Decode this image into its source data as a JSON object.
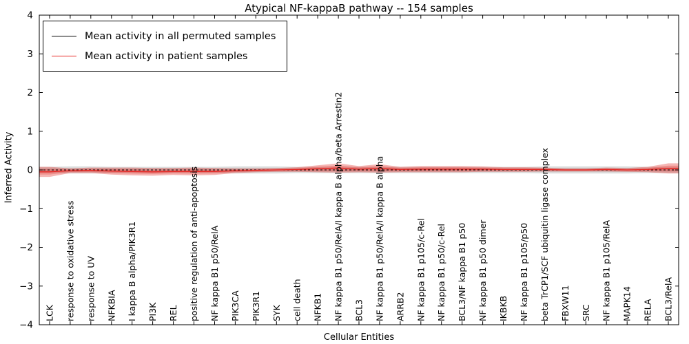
{
  "figure": {
    "title": "Atypical NF-kappaB pathway -- 154 samples",
    "xlabel": "Cellular Entities",
    "ylabel": "Inferred Activity"
  },
  "legend": {
    "items": [
      {
        "label": "Mean activity in all permuted samples",
        "color": "#000000"
      },
      {
        "label": "Mean activity in patient samples",
        "color": "#e62420"
      }
    ]
  },
  "chart_data": {
    "type": "line",
    "title": "Atypical NF-kappaB pathway -- 154 samples",
    "xlabel": "Cellular Entities",
    "ylabel": "Inferred Activity",
    "ylim": [
      -4,
      4
    ],
    "grid": false,
    "legend_position": "upper left",
    "yticks": [
      {
        "value": 4,
        "label": "4"
      },
      {
        "value": 3,
        "label": "3"
      },
      {
        "value": 2,
        "label": "2"
      },
      {
        "value": 1,
        "label": "1"
      },
      {
        "value": 0,
        "label": "0"
      },
      {
        "value": -1,
        "label": "−1"
      },
      {
        "value": -2,
        "label": "−2"
      },
      {
        "value": -3,
        "label": "−3"
      },
      {
        "value": -4,
        "label": "−4"
      }
    ],
    "categories": [
      "LCK",
      "response to oxidative stress",
      "response to UV",
      "NFKBIA",
      "I kappa B alpha/PIK3R1",
      "PI3K",
      "REL",
      "positive regulation of anti-apoptosis",
      "NF kappa B1 p50/RelA",
      "PIK3CA",
      "PIK3R1",
      "SYK",
      "cell death",
      "NFKB1",
      "NF kappa B1 p50/RelA/I kappa B alpha/beta Arrestin2",
      "BCL3",
      "NF kappa B1 p50/RelA/I kappa B alpha",
      "ARRB2",
      "NF kappa B1 p105/c-Rel",
      "NF kappa B1 p50/c-Rel",
      "BCL3/NF kappa B1 p50",
      "NF kappa B1 p50 dimer",
      "IKBKB",
      "NF kappa B1 p105/p50",
      "beta TrCP1/SCF ubiquitin ligase complex",
      "FBXW11",
      "SRC",
      "NF kappa B1 p105/RelA",
      "MAPK14",
      "RELA",
      "BCL3/RelA"
    ],
    "series": [
      {
        "name": "Mean activity in all permuted samples",
        "color": "#000000",
        "line_dash": "3 3",
        "line_width": 1,
        "band_color": "#999999",
        "band_opacity": 0.35,
        "values": [
          0,
          0,
          0,
          0,
          0,
          0,
          0,
          0,
          0,
          0,
          0,
          0,
          0,
          0,
          0,
          0,
          0,
          0,
          0,
          0,
          0,
          0,
          0,
          0,
          0,
          0,
          0,
          0,
          0,
          0,
          0
        ],
        "band": [
          0.08,
          0.09,
          0.09,
          0.08,
          0.08,
          0.08,
          0.08,
          0.08,
          0.08,
          0.09,
          0.09,
          0.09,
          0.08,
          0.08,
          0.08,
          0.08,
          0.08,
          0.08,
          0.08,
          0.08,
          0.08,
          0.08,
          0.08,
          0.08,
          0.09,
          0.09,
          0.09,
          0.09,
          0.09,
          0.08,
          0.08
        ]
      },
      {
        "name": "Mean activity in patient samples",
        "color": "#e62420",
        "line_dash": "",
        "line_width": 1.3,
        "band_color": "#e64540",
        "band_opacity": 0.4,
        "values": [
          -0.05,
          -0.02,
          -0.01,
          -0.03,
          -0.04,
          -0.05,
          -0.04,
          -0.04,
          -0.04,
          -0.02,
          -0.01,
          0.0,
          0.01,
          0.03,
          0.05,
          0.02,
          0.04,
          0.01,
          0.02,
          0.02,
          0.02,
          0.02,
          0.01,
          0.01,
          0.01,
          0.0,
          0.0,
          0.01,
          0.0,
          0.01,
          0.04
        ],
        "band": [
          0.13,
          0.06,
          0.07,
          0.09,
          0.1,
          0.1,
          0.09,
          0.1,
          0.09,
          0.06,
          0.05,
          0.05,
          0.06,
          0.09,
          0.12,
          0.08,
          0.11,
          0.07,
          0.08,
          0.08,
          0.08,
          0.07,
          0.06,
          0.06,
          0.05,
          0.04,
          0.04,
          0.05,
          0.05,
          0.07,
          0.13
        ]
      }
    ]
  }
}
